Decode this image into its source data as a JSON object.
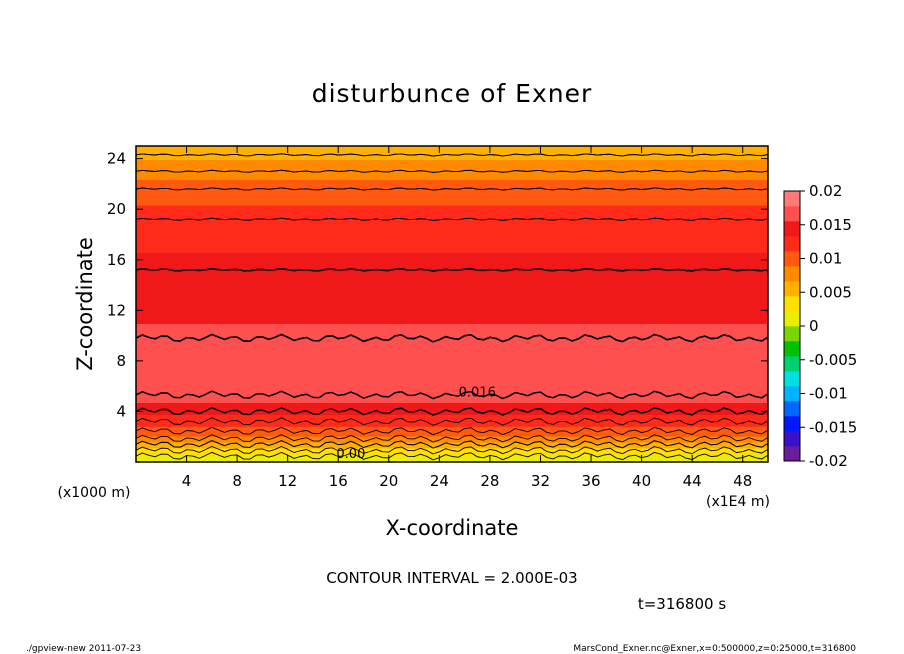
{
  "chart_data": {
    "type": "contour",
    "title": "disturbunce of Exner",
    "xlabel": "X-coordinate",
    "ylabel": "Z-coordinate",
    "x_unit_label": "(x1E4 m)",
    "y_unit_label": "(x1000 m)",
    "xlim": [
      0,
      50
    ],
    "ylim": [
      0,
      25
    ],
    "x_ticks": [
      4,
      8,
      12,
      16,
      20,
      24,
      28,
      32,
      36,
      40,
      44,
      48
    ],
    "y_ticks": [
      4,
      8,
      12,
      16,
      20,
      24
    ],
    "contour_interval_text": "CONTOUR INTERVAL = 2.000E-03",
    "time_text": "t=316800 s",
    "contour_labels": [
      {
        "text": "0.016",
        "x": 27.0,
        "z": 5.2
      },
      {
        "text": "0.00",
        "x": 17.0,
        "z": 0.3
      }
    ],
    "colorbar": {
      "ticks": [
        "0.02",
        "0.015",
        "0.01",
        "0.005",
        "0",
        "-0.005",
        "-0.01",
        "-0.015",
        "-0.02"
      ],
      "vmin": -0.02,
      "vmax": 0.02
    },
    "level_profile": [
      {
        "z": 0.0,
        "value": 0.0
      },
      {
        "z": 0.7,
        "value": 0.003
      },
      {
        "z": 1.4,
        "value": 0.006
      },
      {
        "z": 2.1,
        "value": 0.009
      },
      {
        "z": 2.8,
        "value": 0.011
      },
      {
        "z": 3.6,
        "value": 0.013
      },
      {
        "z": 4.6,
        "value": 0.0155
      },
      {
        "z": 7.0,
        "value": 0.0172
      },
      {
        "z": 9.8,
        "value": 0.016
      },
      {
        "z": 15.2,
        "value": 0.014
      },
      {
        "z": 19.2,
        "value": 0.012
      },
      {
        "z": 21.6,
        "value": 0.01
      },
      {
        "z": 23.0,
        "value": 0.008
      },
      {
        "z": 24.3,
        "value": 0.006
      },
      {
        "z": 25.0,
        "value": 0.005
      }
    ]
  },
  "footer": {
    "left": "./gpview-new   2011-07-23",
    "right": "MarsCond_Exner.nc@Exner,x=0:500000,z=0:25000,t=316800"
  },
  "colors": {
    "palette": [
      "#6a1d9a",
      "#3a10c8",
      "#0018ff",
      "#0068ff",
      "#00b4ff",
      "#00e0e0",
      "#00d070",
      "#00c000",
      "#7ad600",
      "#e8ef00",
      "#ffe000",
      "#ffb000",
      "#ff8a00",
      "#ff5a10",
      "#ff2a1a",
      "#f01818",
      "#ff5050",
      "#ff7a7a"
    ]
  }
}
